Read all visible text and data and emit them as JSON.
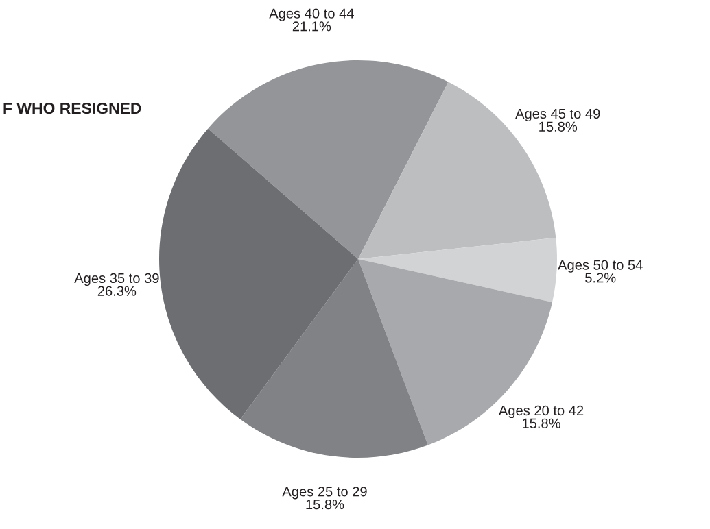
{
  "chart_data": {
    "type": "pie",
    "title": "F WHO RESIGNED",
    "categories": [
      "Ages 40 to 44",
      "Ages 45 to 49",
      "Ages 50 to 54",
      "Ages 20 to 42",
      "Ages 25 to 29",
      "Ages 35 to 39"
    ],
    "values": [
      21.1,
      15.8,
      5.2,
      15.8,
      15.8,
      26.3
    ],
    "value_labels": [
      "21.1%",
      "15.8%",
      "5.2%",
      "15.8%",
      "15.8%",
      "26.3%"
    ],
    "colors": [
      "#939598",
      "#bcbec0",
      "#d1d3d4",
      "#a7a9ac",
      "#808285",
      "#6d6e71"
    ]
  }
}
